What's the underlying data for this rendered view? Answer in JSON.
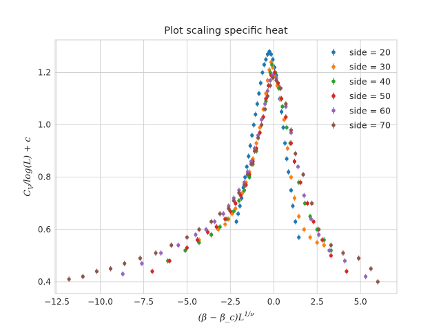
{
  "chart_data": {
    "type": "scatter",
    "title": "Plot scaling specific heat",
    "xlabel": "(β − β_c)L^{1/ν}",
    "ylabel": "C_V/log(L) + c",
    "xlim": [
      -12.6,
      7.1
    ],
    "ylim": [
      0.355,
      1.325
    ],
    "xticks": [
      -12.5,
      -10.0,
      -7.5,
      -5.0,
      -2.5,
      0.0,
      2.5,
      5.0
    ],
    "xtick_labels": [
      "−12.5",
      "−10.0",
      "−7.5",
      "−5.0",
      "−2.5",
      "0.0",
      "2.5",
      "5.0"
    ],
    "yticks": [
      0.4,
      0.6,
      0.8,
      1.0,
      1.2
    ],
    "ytick_labels": [
      "0.4",
      "0.6",
      "0.8",
      "1.0",
      "1.2"
    ],
    "grid": true,
    "legend_position": "top-right",
    "series": [
      {
        "name": "side = 20",
        "color": "#1f77b4",
        "points": [
          [
            -2.15,
            0.63
          ],
          [
            -2.05,
            0.66
          ],
          [
            -1.95,
            0.69
          ],
          [
            -1.85,
            0.72
          ],
          [
            -1.75,
            0.76
          ],
          [
            -1.65,
            0.8
          ],
          [
            -1.55,
            0.84
          ],
          [
            -1.45,
            0.88
          ],
          [
            -1.35,
            0.92
          ],
          [
            -1.25,
            0.96
          ],
          [
            -1.15,
            1.0
          ],
          [
            -1.05,
            1.04
          ],
          [
            -0.95,
            1.08
          ],
          [
            -0.85,
            1.12
          ],
          [
            -0.75,
            1.16
          ],
          [
            -0.65,
            1.2
          ],
          [
            -0.55,
            1.23
          ],
          [
            -0.45,
            1.25
          ],
          [
            -0.35,
            1.27
          ],
          [
            -0.25,
            1.28
          ],
          [
            -0.15,
            1.27
          ],
          [
            -0.05,
            1.25
          ],
          [
            0.05,
            1.22
          ],
          [
            0.15,
            1.19
          ],
          [
            0.25,
            1.15
          ],
          [
            0.35,
            1.1
          ],
          [
            0.45,
            1.05
          ],
          [
            0.55,
            0.99
          ],
          [
            0.65,
            0.93
          ],
          [
            0.75,
            0.87
          ],
          [
            0.85,
            0.82
          ],
          [
            1.0,
            0.75
          ],
          [
            1.1,
            0.69
          ],
          [
            1.25,
            0.63
          ],
          [
            1.45,
            0.57
          ]
        ]
      },
      {
        "name": "side = 30",
        "color": "#ff7f0e",
        "points": [
          [
            -4.3,
            0.56
          ],
          [
            -3.6,
            0.58
          ],
          [
            -3.2,
            0.6
          ],
          [
            -2.8,
            0.62
          ],
          [
            -2.6,
            0.64
          ],
          [
            -2.4,
            0.66
          ],
          [
            -2.2,
            0.68
          ],
          [
            -2.0,
            0.71
          ],
          [
            -1.8,
            0.74
          ],
          [
            -1.6,
            0.78
          ],
          [
            -1.4,
            0.82
          ],
          [
            -1.2,
            0.87
          ],
          [
            -1.0,
            0.93
          ],
          [
            -0.8,
            0.99
          ],
          [
            -0.6,
            1.06
          ],
          [
            -0.45,
            1.12
          ],
          [
            -0.35,
            1.17
          ],
          [
            -0.25,
            1.21
          ],
          [
            -0.15,
            1.24
          ],
          [
            -0.05,
            1.22
          ],
          [
            0.05,
            1.19
          ],
          [
            0.2,
            1.15
          ],
          [
            0.4,
            1.1
          ],
          [
            0.6,
            1.02
          ],
          [
            0.8,
            0.91
          ],
          [
            1.0,
            0.8
          ],
          [
            1.2,
            0.72
          ],
          [
            1.45,
            0.65
          ],
          [
            1.75,
            0.6
          ],
          [
            2.1,
            0.57
          ],
          [
            2.5,
            0.55
          ],
          [
            2.9,
            0.54
          ]
        ]
      },
      {
        "name": "side = 40",
        "color": "#2ca02c",
        "points": [
          [
            -6.1,
            0.48
          ],
          [
            -5.1,
            0.52
          ],
          [
            -4.3,
            0.55
          ],
          [
            -3.6,
            0.58
          ],
          [
            -3.1,
            0.61
          ],
          [
            -2.7,
            0.64
          ],
          [
            -2.3,
            0.67
          ],
          [
            -2.0,
            0.71
          ],
          [
            -1.7,
            0.75
          ],
          [
            -1.4,
            0.8
          ],
          [
            -1.2,
            0.85
          ],
          [
            -1.0,
            0.9
          ],
          [
            -0.8,
            0.97
          ],
          [
            -0.6,
            1.03
          ],
          [
            -0.45,
            1.09
          ],
          [
            -0.3,
            1.15
          ],
          [
            -0.2,
            1.2
          ],
          [
            -0.1,
            1.23
          ],
          [
            0.1,
            1.2
          ],
          [
            0.3,
            1.14
          ],
          [
            0.5,
            1.07
          ],
          [
            0.75,
            0.99
          ],
          [
            0.95,
            0.93
          ],
          [
            1.2,
            0.86
          ],
          [
            1.45,
            0.78
          ],
          [
            1.8,
            0.7
          ],
          [
            2.1,
            0.65
          ],
          [
            2.5,
            0.6
          ],
          [
            2.9,
            0.56
          ],
          [
            3.3,
            0.52
          ]
        ]
      },
      {
        "name": "side = 50",
        "color": "#d62728",
        "points": [
          [
            -7.0,
            0.44
          ],
          [
            -6.0,
            0.48
          ],
          [
            -5.0,
            0.53
          ],
          [
            -4.4,
            0.56
          ],
          [
            -3.8,
            0.59
          ],
          [
            -3.3,
            0.61
          ],
          [
            -2.8,
            0.64
          ],
          [
            -2.5,
            0.67
          ],
          [
            -2.2,
            0.7
          ],
          [
            -1.9,
            0.73
          ],
          [
            -1.6,
            0.77
          ],
          [
            -1.4,
            0.81
          ],
          [
            -1.2,
            0.86
          ],
          [
            -1.0,
            0.91
          ],
          [
            -0.8,
            0.97
          ],
          [
            -0.6,
            1.03
          ],
          [
            -0.45,
            1.1
          ],
          [
            -0.3,
            1.15
          ],
          [
            -0.15,
            1.19
          ],
          [
            0.05,
            1.2
          ],
          [
            0.25,
            1.16
          ],
          [
            0.45,
            1.1
          ],
          [
            0.7,
            1.03
          ],
          [
            1.0,
            0.93
          ],
          [
            1.2,
            0.86
          ],
          [
            1.55,
            0.78
          ],
          [
            1.95,
            0.7
          ],
          [
            2.3,
            0.63
          ],
          [
            2.8,
            0.56
          ],
          [
            3.3,
            0.5
          ],
          [
            4.2,
            0.44
          ]
        ]
      },
      {
        "name": "side = 60",
        "color": "#9467bd",
        "points": [
          [
            -8.7,
            0.43
          ],
          [
            -7.6,
            0.47
          ],
          [
            -6.5,
            0.51
          ],
          [
            -5.5,
            0.54
          ],
          [
            -4.5,
            0.58
          ],
          [
            -3.9,
            0.6
          ],
          [
            -3.4,
            0.63
          ],
          [
            -2.9,
            0.66
          ],
          [
            -2.6,
            0.69
          ],
          [
            -2.3,
            0.72
          ],
          [
            -2.0,
            0.75
          ],
          [
            -1.7,
            0.78
          ],
          [
            -1.5,
            0.82
          ],
          [
            -1.3,
            0.86
          ],
          [
            -1.1,
            0.91
          ],
          [
            -0.9,
            0.96
          ],
          [
            -0.7,
            1.02
          ],
          [
            -0.5,
            1.08
          ],
          [
            -0.35,
            1.13
          ],
          [
            -0.2,
            1.17
          ],
          [
            -0.05,
            1.19
          ],
          [
            0.15,
            1.18
          ],
          [
            0.4,
            1.14
          ],
          [
            0.7,
            1.07
          ],
          [
            1.0,
            0.97
          ],
          [
            1.4,
            0.84
          ],
          [
            1.75,
            0.73
          ],
          [
            2.15,
            0.64
          ],
          [
            2.6,
            0.58
          ],
          [
            3.2,
            0.52
          ],
          [
            4.1,
            0.48
          ],
          [
            5.3,
            0.42
          ]
        ]
      },
      {
        "name": "side = 70",
        "color": "#8c564b",
        "points": [
          [
            -11.8,
            0.41
          ],
          [
            -11.0,
            0.42
          ],
          [
            -10.2,
            0.44
          ],
          [
            -9.4,
            0.45
          ],
          [
            -8.6,
            0.47
          ],
          [
            -7.7,
            0.49
          ],
          [
            -6.8,
            0.51
          ],
          [
            -5.9,
            0.54
          ],
          [
            -5.0,
            0.57
          ],
          [
            -4.3,
            0.6
          ],
          [
            -3.6,
            0.63
          ],
          [
            -3.1,
            0.66
          ],
          [
            -2.6,
            0.68
          ],
          [
            -2.3,
            0.71
          ],
          [
            -2.0,
            0.74
          ],
          [
            -1.7,
            0.77
          ],
          [
            -1.5,
            0.81
          ],
          [
            -1.3,
            0.85
          ],
          [
            -1.1,
            0.9
          ],
          [
            -0.9,
            0.95
          ],
          [
            -0.7,
            1.0
          ],
          [
            -0.5,
            1.06
          ],
          [
            -0.35,
            1.11
          ],
          [
            -0.2,
            1.15
          ],
          [
            -0.05,
            1.18
          ],
          [
            0.15,
            1.17
          ],
          [
            0.4,
            1.14
          ],
          [
            0.7,
            1.08
          ],
          [
            1.0,
            0.98
          ],
          [
            1.25,
            0.89
          ],
          [
            1.7,
            0.81
          ],
          [
            2.2,
            0.7
          ],
          [
            2.6,
            0.6
          ],
          [
            3.3,
            0.54
          ],
          [
            4.0,
            0.51
          ],
          [
            4.9,
            0.49
          ],
          [
            5.6,
            0.45
          ],
          [
            6.0,
            0.4
          ]
        ]
      }
    ]
  }
}
